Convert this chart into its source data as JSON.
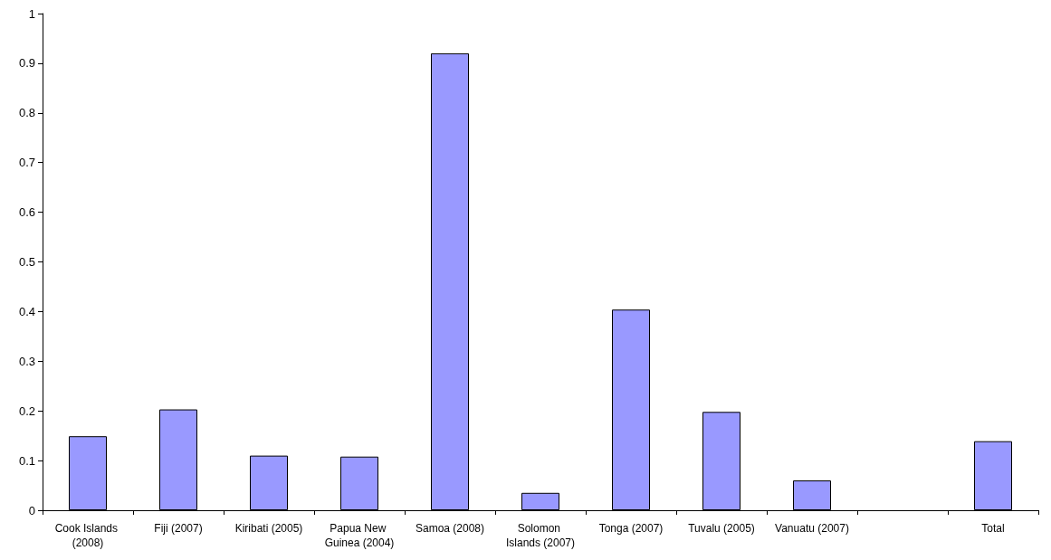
{
  "chart_data": {
    "type": "bar",
    "categories": [
      "Cook Islands (2008)",
      "Fiji (2007)",
      "Kiribati (2005)",
      "Papua New Guinea (2004)",
      "Samoa (2008)",
      "Solomon Islands (2007)",
      "Tonga (2007)",
      "Tuvalu (2005)",
      "Vanuatu (2007)",
      null,
      "Total"
    ],
    "values": [
      0.149,
      0.203,
      0.11,
      0.108,
      0.92,
      0.035,
      0.404,
      0.198,
      0.06,
      null,
      0.139
    ],
    "color": "#9999ff",
    "ylim": [
      0,
      1
    ],
    "yticks": [
      0,
      0.1,
      0.2,
      0.3,
      0.4,
      0.5,
      0.6,
      0.7,
      0.8,
      0.9,
      1
    ],
    "grid": false
  }
}
